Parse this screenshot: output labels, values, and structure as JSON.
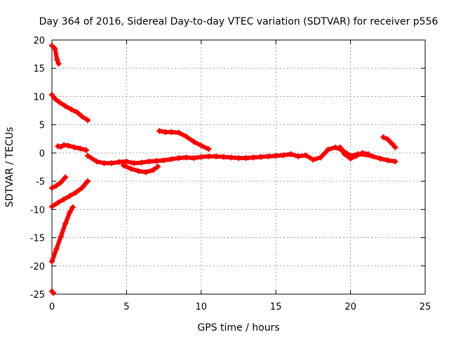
{
  "chart_data": {
    "type": "scatter",
    "title": "Day 364 of 2016, Sidereal Day-to-day VTEC variation (SDTVAR) for receiver p556",
    "xlabel": "GPS time / hours",
    "ylabel": "SDTVAR / TECUs",
    "xlim": [
      0,
      25
    ],
    "ylim": [
      -25,
      20
    ],
    "xticks": [
      0,
      5,
      10,
      15,
      20,
      25
    ],
    "yticks": [
      -25,
      -20,
      -15,
      -10,
      -5,
      0,
      5,
      10,
      15,
      20
    ],
    "grid": true,
    "marker_color": "#ff0000",
    "series": [
      {
        "segments": [
          [
            [
              0.0,
              19.0
            ],
            [
              0.2,
              18.5
            ],
            [
              0.35,
              16.5
            ],
            [
              0.45,
              15.8
            ]
          ],
          [
            [
              0.0,
              10.3
            ],
            [
              0.2,
              9.6
            ],
            [
              0.5,
              9.0
            ],
            [
              0.9,
              8.3
            ],
            [
              1.3,
              7.7
            ],
            [
              1.7,
              7.2
            ],
            [
              2.0,
              6.5
            ],
            [
              2.4,
              5.8
            ]
          ],
          [
            [
              0.4,
              1.2
            ],
            [
              0.6,
              1.1
            ],
            [
              0.8,
              1.4
            ],
            [
              1.1,
              1.3
            ],
            [
              1.5,
              1.0
            ],
            [
              1.9,
              0.8
            ],
            [
              2.3,
              0.5
            ]
          ],
          [
            [
              0.0,
              -6.2
            ],
            [
              0.3,
              -5.8
            ],
            [
              0.6,
              -5.2
            ],
            [
              0.9,
              -4.3
            ]
          ],
          [
            [
              0.0,
              -9.5
            ],
            [
              0.4,
              -8.8
            ],
            [
              0.8,
              -8.2
            ],
            [
              1.2,
              -7.6
            ],
            [
              1.6,
              -7.0
            ],
            [
              2.0,
              -6.2
            ],
            [
              2.4,
              -5.0
            ]
          ],
          [
            [
              0.0,
              -19.2
            ],
            [
              0.3,
              -17.0
            ],
            [
              0.6,
              -14.8
            ],
            [
              0.9,
              -12.5
            ],
            [
              1.2,
              -10.5
            ],
            [
              1.4,
              -9.6
            ]
          ],
          [
            [
              0.0,
              -24.5
            ],
            [
              0.1,
              -24.8
            ]
          ],
          [
            [
              2.4,
              -0.5
            ],
            [
              3.0,
              -1.5
            ],
            [
              3.5,
              -1.8
            ],
            [
              4.0,
              -1.8
            ],
            [
              4.5,
              -1.6
            ],
            [
              5.0,
              -1.5
            ],
            [
              5.5,
              -1.8
            ],
            [
              6.0,
              -1.7
            ],
            [
              6.5,
              -1.5
            ],
            [
              7.0,
              -1.4
            ],
            [
              7.5,
              -1.3
            ],
            [
              8.0,
              -1.1
            ],
            [
              8.5,
              -0.9
            ],
            [
              9.0,
              -0.8
            ],
            [
              9.5,
              -0.9
            ],
            [
              10.0,
              -0.7
            ],
            [
              10.5,
              -0.6
            ],
            [
              11.0,
              -0.6
            ],
            [
              11.5,
              -0.7
            ],
            [
              12.0,
              -0.8
            ],
            [
              12.5,
              -0.9
            ],
            [
              13.0,
              -0.9
            ],
            [
              13.5,
              -0.8
            ],
            [
              14.0,
              -0.7
            ],
            [
              14.5,
              -0.6
            ],
            [
              15.0,
              -0.5
            ],
            [
              15.5,
              -0.4
            ],
            [
              16.0,
              -0.2
            ],
            [
              16.5,
              -0.6
            ],
            [
              17.0,
              -0.4
            ],
            [
              17.5,
              -1.2
            ],
            [
              18.0,
              -0.8
            ],
            [
              18.5,
              0.6
            ],
            [
              19.0,
              1.0
            ],
            [
              19.5,
              0.4
            ],
            [
              20.0,
              -0.5
            ],
            [
              20.5,
              -0.2
            ],
            [
              21.0,
              -0.3
            ],
            [
              21.5,
              -0.6
            ],
            [
              22.0,
              -1.0
            ],
            [
              22.5,
              -1.3
            ],
            [
              23.0,
              -1.5
            ]
          ],
          [
            [
              4.8,
              -2.2
            ],
            [
              5.3,
              -2.8
            ],
            [
              5.8,
              -3.2
            ],
            [
              6.3,
              -3.4
            ],
            [
              6.8,
              -3.0
            ],
            [
              7.1,
              -2.4
            ]
          ],
          [
            [
              7.2,
              3.9
            ],
            [
              7.6,
              3.7
            ],
            [
              8.0,
              3.7
            ],
            [
              8.5,
              3.6
            ],
            [
              9.0,
              2.9
            ],
            [
              9.5,
              2.0
            ],
            [
              10.0,
              1.3
            ],
            [
              10.5,
              0.7
            ]
          ],
          [
            [
              19.3,
              1.0
            ],
            [
              19.6,
              -0.2
            ],
            [
              20.0,
              -1.0
            ],
            [
              20.4,
              -0.5
            ],
            [
              20.8,
              0.0
            ],
            [
              21.2,
              -0.2
            ]
          ],
          [
            [
              22.2,
              2.8
            ],
            [
              22.5,
              2.4
            ],
            [
              22.8,
              1.6
            ],
            [
              23.0,
              1.0
            ]
          ]
        ]
      }
    ]
  }
}
